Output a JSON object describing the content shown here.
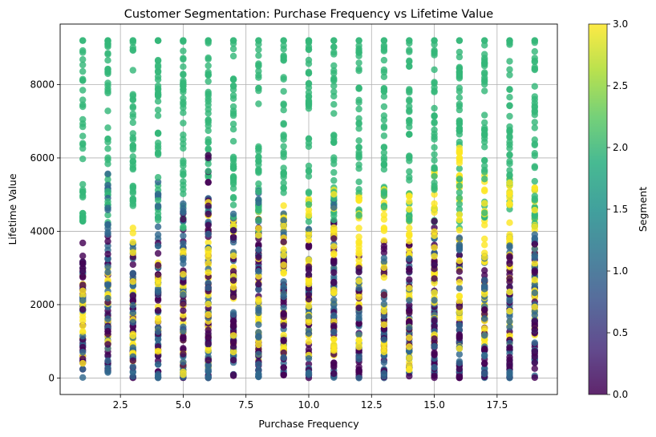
{
  "chart_data": {
    "type": "scatter",
    "title": "Customer Segmentation: Purchase Frequency vs Lifetime Value",
    "xlabel": "Purchase Frequency",
    "ylabel": "Lifetime Value",
    "xlim": [
      0.1,
      19.9
    ],
    "ylim": [
      -450,
      9650
    ],
    "xticks": [
      "2.5",
      "5.0",
      "7.5",
      "10.0",
      "12.5",
      "15.0",
      "17.5"
    ],
    "yticks": [
      "0",
      "2000",
      "4000",
      "6000",
      "8000"
    ],
    "grid": true,
    "colorbar": {
      "label": "Segment",
      "range": [
        0.0,
        3.0
      ],
      "ticks": [
        "0.0",
        "0.5",
        "1.0",
        "1.5",
        "2.0",
        "2.5",
        "3.0"
      ],
      "colormap": "viridis"
    },
    "x_categories": [
      1,
      2,
      3,
      4,
      5,
      6,
      7,
      8,
      9,
      10,
      11,
      12,
      13,
      14,
      15,
      16,
      17,
      18,
      19
    ],
    "segments": [
      {
        "segment": 0,
        "color": "#440154",
        "ranges": [
          [
            0,
            3700
          ],
          [
            0,
            4000
          ],
          [
            0,
            3500
          ],
          [
            0,
            3700
          ],
          [
            0,
            4500
          ],
          [
            0,
            6200
          ],
          [
            0,
            4400
          ],
          [
            0,
            4600
          ],
          [
            0,
            4200
          ],
          [
            0,
            3700
          ],
          [
            0,
            4300
          ],
          [
            0,
            3700
          ],
          [
            0,
            3900
          ],
          [
            0,
            3800
          ],
          [
            0,
            4500
          ],
          [
            0,
            3900
          ],
          [
            0,
            3300
          ],
          [
            0,
            3800
          ],
          [
            0,
            3700
          ]
        ]
      },
      {
        "segment": 1,
        "color": "#31688e",
        "ranges": [
          [
            0,
            3300
          ],
          [
            0,
            5700
          ],
          [
            0,
            3800
          ],
          [
            0,
            5800
          ],
          [
            0,
            5300
          ],
          [
            0,
            5200
          ],
          [
            0,
            4600
          ],
          [
            0,
            5600
          ],
          [
            0,
            4500
          ],
          [
            0,
            4200
          ],
          [
            0,
            5200
          ],
          [
            0,
            3300
          ],
          [
            0,
            3600
          ],
          [
            0,
            3500
          ],
          [
            0,
            4000
          ],
          [
            0,
            4000
          ],
          [
            0,
            3500
          ],
          [
            0,
            4000
          ],
          [
            0,
            4200
          ]
        ]
      },
      {
        "segment": 2,
        "color": "#35b779",
        "ranges": [
          [
            4200,
            9200
          ],
          [
            4000,
            9200
          ],
          [
            4300,
            9200
          ],
          [
            4300,
            9200
          ],
          [
            4000,
            9200
          ],
          [
            4200,
            9200
          ],
          [
            4000,
            9200
          ],
          [
            4000,
            9200
          ],
          [
            5000,
            9200
          ],
          [
            4200,
            9200
          ],
          [
            4200,
            9200
          ],
          [
            4400,
            9200
          ],
          [
            4500,
            9200
          ],
          [
            4200,
            9200
          ],
          [
            4200,
            9200
          ],
          [
            4000,
            9200
          ],
          [
            4300,
            9200
          ],
          [
            4200,
            9200
          ],
          [
            4000,
            9200
          ]
        ]
      },
      {
        "segment": 3,
        "color": "#fde725",
        "ranges": [
          [
            400,
            2900
          ],
          [
            800,
            3400
          ],
          [
            400,
            4600
          ],
          [
            600,
            3200
          ],
          [
            0,
            3500
          ],
          [
            300,
            4800
          ],
          [
            600,
            4400
          ],
          [
            500,
            4800
          ],
          [
            600,
            4700
          ],
          [
            600,
            5100
          ],
          [
            600,
            5200
          ],
          [
            700,
            5100
          ],
          [
            700,
            5200
          ],
          [
            0,
            5200
          ],
          [
            800,
            5700
          ],
          [
            800,
            6300
          ],
          [
            800,
            5700
          ],
          [
            900,
            5900
          ],
          [
            1100,
            5300
          ]
        ]
      }
    ],
    "cap_value": 9200
  }
}
